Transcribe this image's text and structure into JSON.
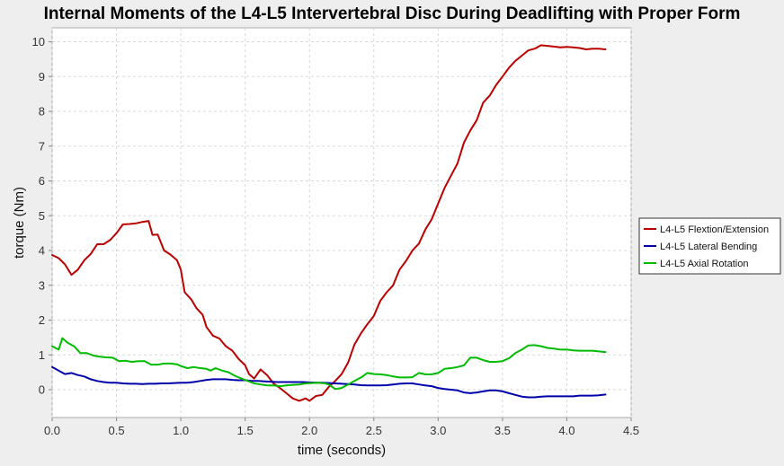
{
  "chart_data": {
    "type": "line",
    "title": "Internal Moments of the L4-L5 Intervertebral Disc  During Deadlifting with Proper Form",
    "xlabel": "time (seconds)",
    "ylabel": "torque (Nm)",
    "xlim": [
      0.0,
      4.5
    ],
    "ylim": [
      -0.8,
      10.4
    ],
    "xticks": [
      "0.0",
      "0.5",
      "1.0",
      "1.5",
      "2.0",
      "2.5",
      "3.0",
      "3.5",
      "4.0",
      "4.5"
    ],
    "yticks": [
      "0",
      "1",
      "2",
      "3",
      "4",
      "5",
      "6",
      "7",
      "8",
      "9",
      "10"
    ],
    "grid": true,
    "legend_position": "right",
    "series": [
      {
        "name": "L4-L5 Flextion/Extension",
        "color": "#bb0000",
        "points": [
          [
            0.0,
            3.87
          ],
          [
            0.05,
            3.78
          ],
          [
            0.1,
            3.6
          ],
          [
            0.15,
            3.3
          ],
          [
            0.2,
            3.45
          ],
          [
            0.25,
            3.72
          ],
          [
            0.3,
            3.9
          ],
          [
            0.35,
            4.18
          ],
          [
            0.4,
            4.18
          ],
          [
            0.45,
            4.3
          ],
          [
            0.5,
            4.5
          ],
          [
            0.55,
            4.75
          ],
          [
            0.6,
            4.76
          ],
          [
            0.65,
            4.78
          ],
          [
            0.7,
            4.82
          ],
          [
            0.75,
            4.85
          ],
          [
            0.78,
            4.45
          ],
          [
            0.82,
            4.46
          ],
          [
            0.87,
            4.0
          ],
          [
            0.92,
            3.88
          ],
          [
            0.97,
            3.72
          ],
          [
            1.0,
            3.45
          ],
          [
            1.03,
            2.8
          ],
          [
            1.08,
            2.6
          ],
          [
            1.12,
            2.35
          ],
          [
            1.17,
            2.15
          ],
          [
            1.2,
            1.8
          ],
          [
            1.25,
            1.55
          ],
          [
            1.3,
            1.47
          ],
          [
            1.35,
            1.25
          ],
          [
            1.4,
            1.12
          ],
          [
            1.45,
            0.88
          ],
          [
            1.5,
            0.7
          ],
          [
            1.53,
            0.45
          ],
          [
            1.57,
            0.32
          ],
          [
            1.62,
            0.58
          ],
          [
            1.67,
            0.42
          ],
          [
            1.72,
            0.18
          ],
          [
            1.77,
            0.05
          ],
          [
            1.82,
            -0.1
          ],
          [
            1.87,
            -0.25
          ],
          [
            1.92,
            -0.32
          ],
          [
            1.97,
            -0.25
          ],
          [
            2.0,
            -0.32
          ],
          [
            2.05,
            -0.18
          ],
          [
            2.1,
            -0.15
          ],
          [
            2.15,
            0.08
          ],
          [
            2.2,
            0.25
          ],
          [
            2.25,
            0.45
          ],
          [
            2.3,
            0.78
          ],
          [
            2.35,
            1.3
          ],
          [
            2.4,
            1.62
          ],
          [
            2.45,
            1.88
          ],
          [
            2.5,
            2.12
          ],
          [
            2.55,
            2.55
          ],
          [
            2.6,
            2.8
          ],
          [
            2.65,
            3.0
          ],
          [
            2.7,
            3.45
          ],
          [
            2.75,
            3.7
          ],
          [
            2.8,
            4.0
          ],
          [
            2.85,
            4.2
          ],
          [
            2.9,
            4.6
          ],
          [
            2.95,
            4.9
          ],
          [
            3.0,
            5.35
          ],
          [
            3.05,
            5.8
          ],
          [
            3.1,
            6.15
          ],
          [
            3.15,
            6.5
          ],
          [
            3.2,
            7.1
          ],
          [
            3.25,
            7.45
          ],
          [
            3.3,
            7.75
          ],
          [
            3.35,
            8.25
          ],
          [
            3.4,
            8.45
          ],
          [
            3.45,
            8.75
          ],
          [
            3.5,
            9.0
          ],
          [
            3.55,
            9.25
          ],
          [
            3.6,
            9.45
          ],
          [
            3.65,
            9.6
          ],
          [
            3.7,
            9.75
          ],
          [
            3.75,
            9.8
          ],
          [
            3.8,
            9.9
          ],
          [
            3.85,
            9.88
          ],
          [
            3.9,
            9.86
          ],
          [
            3.95,
            9.84
          ],
          [
            4.0,
            9.85
          ],
          [
            4.05,
            9.84
          ],
          [
            4.1,
            9.82
          ],
          [
            4.15,
            9.78
          ],
          [
            4.2,
            9.8
          ],
          [
            4.25,
            9.8
          ],
          [
            4.3,
            9.78
          ]
        ]
      },
      {
        "name": "L4-L5 Lateral Bending",
        "color": "#0000aa",
        "points": [
          [
            0.0,
            0.65
          ],
          [
            0.05,
            0.55
          ],
          [
            0.1,
            0.45
          ],
          [
            0.15,
            0.48
          ],
          [
            0.2,
            0.42
          ],
          [
            0.25,
            0.38
          ],
          [
            0.3,
            0.3
          ],
          [
            0.35,
            0.25
          ],
          [
            0.4,
            0.22
          ],
          [
            0.45,
            0.2
          ],
          [
            0.5,
            0.2
          ],
          [
            0.55,
            0.18
          ],
          [
            0.6,
            0.17
          ],
          [
            0.65,
            0.17
          ],
          [
            0.7,
            0.16
          ],
          [
            0.75,
            0.17
          ],
          [
            0.8,
            0.17
          ],
          [
            0.85,
            0.18
          ],
          [
            0.9,
            0.18
          ],
          [
            0.95,
            0.19
          ],
          [
            1.0,
            0.2
          ],
          [
            1.05,
            0.2
          ],
          [
            1.1,
            0.22
          ],
          [
            1.15,
            0.25
          ],
          [
            1.2,
            0.28
          ],
          [
            1.25,
            0.3
          ],
          [
            1.3,
            0.3
          ],
          [
            1.35,
            0.3
          ],
          [
            1.4,
            0.28
          ],
          [
            1.45,
            0.27
          ],
          [
            1.5,
            0.27
          ],
          [
            1.55,
            0.25
          ],
          [
            1.6,
            0.25
          ],
          [
            1.65,
            0.24
          ],
          [
            1.7,
            0.23
          ],
          [
            1.75,
            0.22
          ],
          [
            1.8,
            0.22
          ],
          [
            1.85,
            0.22
          ],
          [
            1.9,
            0.22
          ],
          [
            1.95,
            0.22
          ],
          [
            2.0,
            0.21
          ],
          [
            2.05,
            0.2
          ],
          [
            2.1,
            0.2
          ],
          [
            2.15,
            0.19
          ],
          [
            2.2,
            0.18
          ],
          [
            2.25,
            0.17
          ],
          [
            2.3,
            0.16
          ],
          [
            2.35,
            0.15
          ],
          [
            2.4,
            0.13
          ],
          [
            2.45,
            0.12
          ],
          [
            2.5,
            0.12
          ],
          [
            2.55,
            0.12
          ],
          [
            2.6,
            0.13
          ],
          [
            2.65,
            0.15
          ],
          [
            2.7,
            0.17
          ],
          [
            2.75,
            0.18
          ],
          [
            2.8,
            0.18
          ],
          [
            2.85,
            0.15
          ],
          [
            2.9,
            0.12
          ],
          [
            2.95,
            0.1
          ],
          [
            3.0,
            0.05
          ],
          [
            3.05,
            0.02
          ],
          [
            3.1,
            0.0
          ],
          [
            3.15,
            -0.02
          ],
          [
            3.2,
            -0.08
          ],
          [
            3.25,
            -0.1
          ],
          [
            3.3,
            -0.08
          ],
          [
            3.35,
            -0.05
          ],
          [
            3.4,
            -0.02
          ],
          [
            3.45,
            -0.02
          ],
          [
            3.5,
            -0.05
          ],
          [
            3.55,
            -0.1
          ],
          [
            3.6,
            -0.15
          ],
          [
            3.65,
            -0.2
          ],
          [
            3.7,
            -0.22
          ],
          [
            3.75,
            -0.22
          ],
          [
            3.8,
            -0.2
          ],
          [
            3.85,
            -0.19
          ],
          [
            3.9,
            -0.19
          ],
          [
            3.95,
            -0.19
          ],
          [
            4.0,
            -0.19
          ],
          [
            4.05,
            -0.19
          ],
          [
            4.1,
            -0.17
          ],
          [
            4.15,
            -0.17
          ],
          [
            4.2,
            -0.17
          ],
          [
            4.25,
            -0.16
          ],
          [
            4.3,
            -0.14
          ]
        ]
      },
      {
        "name": "L4-L5 Axial Rotation",
        "color": "#00bb00",
        "points": [
          [
            0.0,
            1.25
          ],
          [
            0.05,
            1.15
          ],
          [
            0.08,
            1.48
          ],
          [
            0.12,
            1.35
          ],
          [
            0.17,
            1.25
          ],
          [
            0.22,
            1.05
          ],
          [
            0.27,
            1.05
          ],
          [
            0.32,
            0.98
          ],
          [
            0.37,
            0.95
          ],
          [
            0.42,
            0.93
          ],
          [
            0.47,
            0.92
          ],
          [
            0.52,
            0.82
          ],
          [
            0.57,
            0.83
          ],
          [
            0.62,
            0.8
          ],
          [
            0.67,
            0.82
          ],
          [
            0.72,
            0.82
          ],
          [
            0.77,
            0.72
          ],
          [
            0.82,
            0.72
          ],
          [
            0.87,
            0.75
          ],
          [
            0.92,
            0.75
          ],
          [
            0.97,
            0.73
          ],
          [
            1.0,
            0.68
          ],
          [
            1.05,
            0.62
          ],
          [
            1.1,
            0.65
          ],
          [
            1.15,
            0.62
          ],
          [
            1.2,
            0.6
          ],
          [
            1.23,
            0.55
          ],
          [
            1.27,
            0.62
          ],
          [
            1.32,
            0.55
          ],
          [
            1.37,
            0.5
          ],
          [
            1.42,
            0.4
          ],
          [
            1.47,
            0.32
          ],
          [
            1.52,
            0.25
          ],
          [
            1.57,
            0.18
          ],
          [
            1.62,
            0.15
          ],
          [
            1.67,
            0.12
          ],
          [
            1.72,
            0.12
          ],
          [
            1.77,
            0.1
          ],
          [
            1.82,
            0.12
          ],
          [
            1.87,
            0.14
          ],
          [
            1.92,
            0.15
          ],
          [
            1.97,
            0.18
          ],
          [
            2.02,
            0.19
          ],
          [
            2.07,
            0.2
          ],
          [
            2.12,
            0.18
          ],
          [
            2.15,
            0.15
          ],
          [
            2.2,
            0.02
          ],
          [
            2.25,
            0.05
          ],
          [
            2.3,
            0.15
          ],
          [
            2.35,
            0.25
          ],
          [
            2.4,
            0.35
          ],
          [
            2.45,
            0.48
          ],
          [
            2.5,
            0.45
          ],
          [
            2.55,
            0.44
          ],
          [
            2.6,
            0.42
          ],
          [
            2.65,
            0.38
          ],
          [
            2.7,
            0.35
          ],
          [
            2.75,
            0.35
          ],
          [
            2.8,
            0.36
          ],
          [
            2.85,
            0.48
          ],
          [
            2.9,
            0.44
          ],
          [
            2.95,
            0.44
          ],
          [
            3.0,
            0.48
          ],
          [
            3.05,
            0.6
          ],
          [
            3.1,
            0.62
          ],
          [
            3.15,
            0.65
          ],
          [
            3.2,
            0.7
          ],
          [
            3.25,
            0.92
          ],
          [
            3.3,
            0.92
          ],
          [
            3.35,
            0.85
          ],
          [
            3.4,
            0.8
          ],
          [
            3.45,
            0.8
          ],
          [
            3.5,
            0.82
          ],
          [
            3.55,
            0.9
          ],
          [
            3.6,
            1.05
          ],
          [
            3.65,
            1.15
          ],
          [
            3.7,
            1.27
          ],
          [
            3.75,
            1.28
          ],
          [
            3.8,
            1.25
          ],
          [
            3.85,
            1.2
          ],
          [
            3.9,
            1.18
          ],
          [
            3.95,
            1.15
          ],
          [
            4.0,
            1.15
          ],
          [
            4.05,
            1.13
          ],
          [
            4.1,
            1.12
          ],
          [
            4.15,
            1.12
          ],
          [
            4.2,
            1.12
          ],
          [
            4.25,
            1.1
          ],
          [
            4.3,
            1.08
          ]
        ]
      }
    ]
  }
}
